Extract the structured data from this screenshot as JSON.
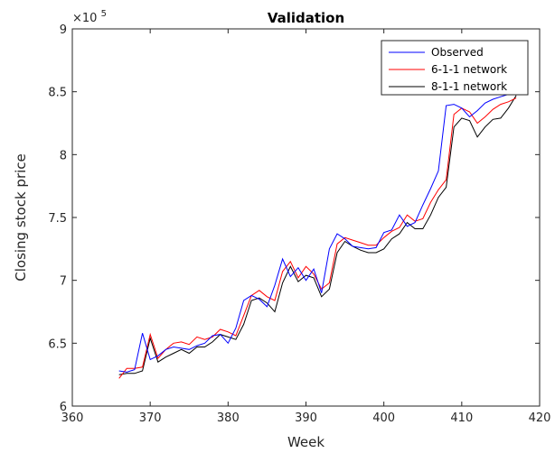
{
  "chart_data": {
    "type": "line",
    "title": "Validation",
    "xlabel": "Week",
    "ylabel": "Closing stock price",
    "y_multiplier_label": "×10",
    "y_multiplier_exp": "5",
    "xlim": [
      360,
      420
    ],
    "ylim": [
      6,
      9
    ],
    "xticks": [
      "360",
      "370",
      "380",
      "390",
      "400",
      "410",
      "420"
    ],
    "yticks": [
      "6",
      "6.5",
      "7",
      "7.5",
      "8",
      "8.5",
      "9"
    ],
    "legend_position": "top-right",
    "grid": false,
    "x": [
      366,
      367,
      368,
      369,
      370,
      371,
      372,
      373,
      374,
      375,
      376,
      377,
      378,
      379,
      380,
      381,
      382,
      383,
      384,
      385,
      386,
      387,
      388,
      389,
      390,
      391,
      392,
      393,
      394,
      395,
      396,
      397,
      398,
      399,
      400,
      401,
      402,
      403,
      404,
      405,
      406,
      407,
      408,
      409,
      410,
      411,
      412,
      413,
      414,
      415,
      416,
      417
    ],
    "series": [
      {
        "name": "Observed",
        "color": "#0000ff",
        "values": [
          6.28,
          6.27,
          6.29,
          6.58,
          6.37,
          6.4,
          6.45,
          6.47,
          6.46,
          6.45,
          6.48,
          6.5,
          6.56,
          6.57,
          6.5,
          6.62,
          6.84,
          6.88,
          6.85,
          6.79,
          6.96,
          7.17,
          7.03,
          7.1,
          7.0,
          7.09,
          6.9,
          7.25,
          7.37,
          7.33,
          7.27,
          7.26,
          7.25,
          7.26,
          7.38,
          7.4,
          7.52,
          7.43,
          7.46,
          7.6,
          7.73,
          7.87,
          8.39,
          8.4,
          8.37,
          8.3,
          8.35,
          8.41,
          8.44,
          8.46,
          8.48,
          8.5
        ]
      },
      {
        "name": "6-1-1 network",
        "color": "#ff0000",
        "values": [
          6.22,
          6.3,
          6.3,
          6.31,
          6.57,
          6.38,
          6.45,
          6.5,
          6.51,
          6.49,
          6.55,
          6.53,
          6.55,
          6.61,
          6.59,
          6.56,
          6.72,
          6.88,
          6.92,
          6.87,
          6.84,
          7.07,
          7.15,
          7.02,
          7.11,
          7.05,
          6.93,
          6.98,
          7.29,
          7.34,
          7.32,
          7.3,
          7.28,
          7.28,
          7.34,
          7.39,
          7.42,
          7.52,
          7.47,
          7.49,
          7.62,
          7.72,
          7.8,
          8.32,
          8.37,
          8.34,
          8.25,
          8.3,
          8.36,
          8.4,
          8.42,
          8.45
        ]
      },
      {
        "name": "8-1-1 network",
        "color": "#000000",
        "values": [
          6.25,
          6.26,
          6.26,
          6.28,
          6.54,
          6.35,
          6.39,
          6.42,
          6.45,
          6.42,
          6.47,
          6.47,
          6.51,
          6.57,
          6.55,
          6.53,
          6.65,
          6.84,
          6.86,
          6.82,
          6.75,
          6.98,
          7.11,
          6.99,
          7.04,
          7.02,
          6.87,
          6.93,
          7.22,
          7.31,
          7.27,
          7.24,
          7.22,
          7.22,
          7.25,
          7.33,
          7.37,
          7.46,
          7.41,
          7.41,
          7.52,
          7.66,
          7.74,
          8.22,
          8.29,
          8.27,
          8.14,
          8.22,
          8.28,
          8.29,
          8.37,
          8.47
        ]
      }
    ]
  }
}
